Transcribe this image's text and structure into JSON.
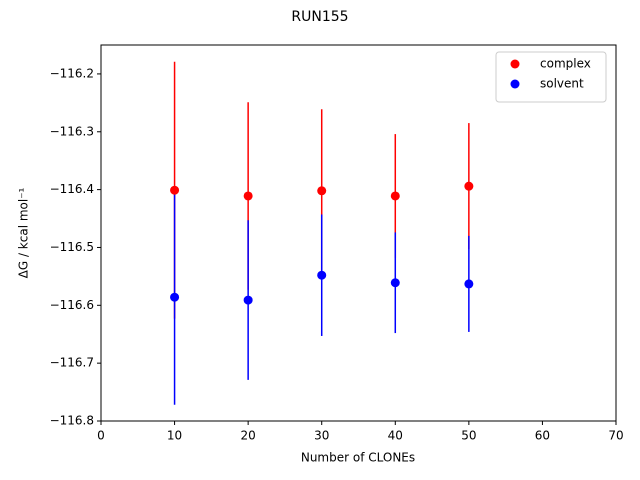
{
  "chart_data": {
    "type": "errorbar-scatter",
    "title": "RUN155",
    "xlabel": "Number of CLONEs",
    "ylabel": "ΔG / kcal mol⁻¹",
    "x": [
      10,
      20,
      30,
      40,
      50
    ],
    "series": [
      {
        "name": "complex",
        "color": "#ff0000",
        "values": [
          -116.401,
          -116.411,
          -116.402,
          -116.411,
          -116.394
        ],
        "errors": [
          0.222,
          0.162,
          0.141,
          0.107,
          0.109
        ]
      },
      {
        "name": "solvent",
        "color": "#0000ff",
        "values": [
          -116.586,
          -116.591,
          -116.548,
          -116.561,
          -116.563
        ],
        "errors": [
          0.186,
          0.138,
          0.105,
          0.087,
          0.083
        ]
      }
    ],
    "xlim": [
      0,
      70
    ],
    "xticks": [
      0,
      10,
      20,
      30,
      40,
      50,
      60,
      70
    ],
    "ylim": [
      -116.8,
      -116.15
    ],
    "yticks": [
      {
        "value": -116.8,
        "label": "−116.8"
      },
      {
        "value": -116.7,
        "label": "−116.7"
      },
      {
        "value": -116.6,
        "label": "−116.6"
      },
      {
        "value": -116.5,
        "label": "−116.5"
      },
      {
        "value": -116.4,
        "label": "−116.4"
      },
      {
        "value": -116.3,
        "label": "−116.3"
      },
      {
        "value": -116.2,
        "label": "−116.2"
      }
    ],
    "legend": "upper right",
    "grid": false
  }
}
